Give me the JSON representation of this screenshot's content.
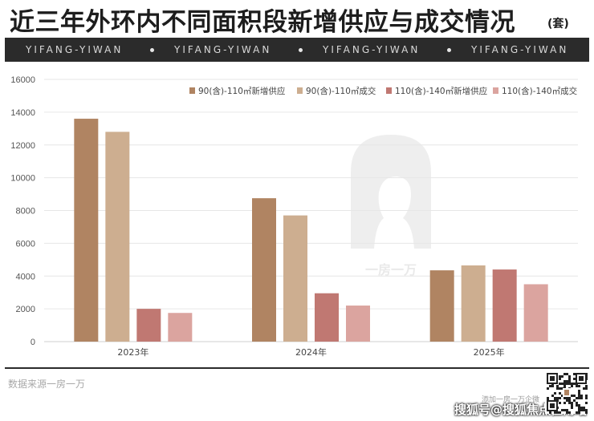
{
  "header": {
    "title": "近三年外环内不同面积段新增供应与成交情况",
    "unit": "(套)"
  },
  "banner": {
    "items": [
      "YIFANG-YIWAN",
      "YIFANG-YIWAN",
      "YIFANG-YIWAN",
      "YIFANG-YIWAN"
    ]
  },
  "watermark": {
    "text": "一房一万"
  },
  "footer": {
    "source": "数据来源一房一万",
    "add_wechat": "添加一房一万企微",
    "sohu": "搜狐号@搜狐焦点佳南站"
  },
  "chart_data": {
    "type": "bar",
    "title": "",
    "xlabel": "",
    "ylabel": "",
    "categories": [
      "2023年",
      "2024年",
      "2025年"
    ],
    "ylim": [
      0,
      16000
    ],
    "yticks": [
      "0",
      "2000",
      "4000",
      "6000",
      "8000",
      "10000",
      "12000",
      "14000",
      "16000"
    ],
    "grid": true,
    "legend_position": "top-right",
    "series": [
      {
        "name": "90(含)-110㎡新增供应",
        "color": "#b08462",
        "values": [
          13600,
          8750,
          4350
        ]
      },
      {
        "name": "90(含)-110㎡成交",
        "color": "#cdae90",
        "values": [
          12800,
          7700,
          4650
        ]
      },
      {
        "name": "110(含)-140㎡新增供应",
        "color": "#c07872",
        "values": [
          2000,
          2950,
          4400
        ]
      },
      {
        "name": "110(含)-140㎡成交",
        "color": "#dba49f",
        "values": [
          1750,
          2200,
          3500
        ]
      }
    ]
  }
}
